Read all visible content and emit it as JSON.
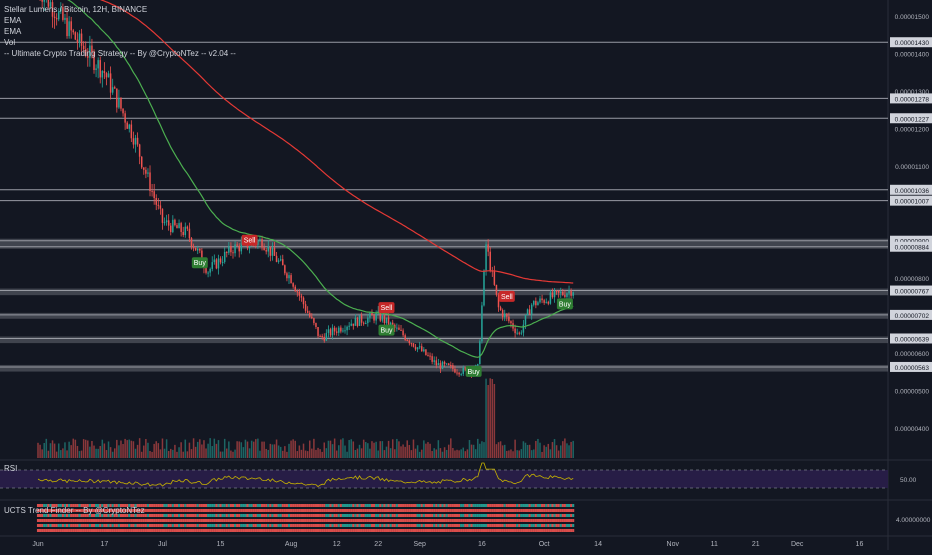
{
  "header": {
    "symbol_line": "Stellar Lumens / Bitcoin, 12H, BINANCE",
    "indicators": [
      "EMA",
      "EMA",
      "Vol",
      "-- Ultimate Crypto Trading Strategy -- By @CryptoNTez -- v2.04 --"
    ]
  },
  "rsi_label": "RSI",
  "trend_label": "UCTS Trend Finder -- By @CryptoNTez",
  "colors": {
    "background": "#131722",
    "up": "#26a69a",
    "down": "#ef5350",
    "ema_fast": "#4caf50",
    "ema_slow": "#e53935",
    "rsi_line": "#c8b400",
    "rsi_band": "#2a1e4a",
    "level_line": "#d1d4dc",
    "buy_badge": "#2e7d32",
    "sell_badge": "#c62828"
  },
  "chart_data": {
    "type": "candlestick",
    "title": "Stellar Lumens / Bitcoin, 12H, BINANCE",
    "y_axis_ticks": [
      "0.00001500",
      "0.00001430",
      "0.00001400",
      "0.00001300",
      "0.00001278",
      "0.00001227",
      "0.00001200",
      "0.00001100",
      "0.00001036",
      "0.00001007",
      "0.00000900",
      "0.00000884",
      "0.00000800",
      "0.00000767",
      "0.00000702",
      "0.00000639",
      "0.00000600",
      "0.00000563",
      "0.00000500",
      "0.00000400"
    ],
    "rsi_ticks": [
      "50.00"
    ],
    "trend_ticks": [
      "4.00000000"
    ],
    "x_axis_ticks": [
      "Jun",
      "17",
      "Jul",
      "15",
      "Aug",
      "12",
      "22",
      "Sep",
      "16",
      "Oct",
      "14",
      "Nov",
      "11",
      "21",
      "Dec",
      "16"
    ],
    "horizontal_levels": [
      1.43e-05,
      1.28e-05,
      1.227e-05,
      1.036e-05,
      1.007e-05,
      9e-06,
      8.84e-06,
      7.67e-06,
      7.02e-06,
      6.39e-06,
      5.63e-06
    ],
    "signals": [
      {
        "label": "Buy",
        "date": "Jul 10",
        "price": 8.4e-06
      },
      {
        "label": "Sell",
        "date": "Jul 22",
        "price": 9e-06
      },
      {
        "label": "Sell",
        "date": "Aug 24",
        "price": 7.2e-06
      },
      {
        "label": "Buy",
        "date": "Aug 24",
        "price": 6.6e-06
      },
      {
        "label": "Buy",
        "date": "Sep 14",
        "price": 5.5e-06
      },
      {
        "label": "Sell",
        "date": "Sep 22",
        "price": 7.5e-06
      },
      {
        "label": "Buy",
        "date": "Oct 6",
        "price": 7.3e-06
      }
    ],
    "series": [
      {
        "name": "EMA",
        "values_approx": "fast EMA falling from 0.0000145 (early Jun) to 0.0000070 (Oct)"
      },
      {
        "name": "EMA",
        "values_approx": "slow EMA falling from 0.0000160 (Jun) to 0.0000087 (Oct)"
      }
    ],
    "price_path": [
      {
        "date": "Jun 1",
        "price": 1.58e-05
      },
      {
        "date": "Jun 10",
        "price": 1.44e-05
      },
      {
        "date": "Jun 17",
        "price": 1.35e-05
      },
      {
        "date": "Jun 24",
        "price": 1.18e-05
      },
      {
        "date": "Jul 1",
        "price": 9.5e-06
      },
      {
        "date": "Jul 7",
        "price": 9.2e-06
      },
      {
        "date": "Jul 12",
        "price": 8.2e-06
      },
      {
        "date": "Jul 18",
        "price": 8.8e-06
      },
      {
        "date": "Jul 25",
        "price": 9e-06
      },
      {
        "date": "Aug 1",
        "price": 8e-06
      },
      {
        "date": "Aug 8",
        "price": 6.4e-06
      },
      {
        "date": "Aug 15",
        "price": 6.8e-06
      },
      {
        "date": "Aug 22",
        "price": 7e-06
      },
      {
        "date": "Aug 29",
        "price": 6.4e-06
      },
      {
        "date": "Sep 5",
        "price": 5.7e-06
      },
      {
        "date": "Sep 12",
        "price": 5.5e-06
      },
      {
        "date": "Sep 15",
        "price": 5.6e-06
      },
      {
        "date": "Sep 17",
        "price": 8.9e-06
      },
      {
        "date": "Sep 20",
        "price": 7.2e-06
      },
      {
        "date": "Sep 25",
        "price": 6.5e-06
      },
      {
        "date": "Sep 28",
        "price": 7.3e-06
      },
      {
        "date": "Oct 3",
        "price": 7.5e-06
      },
      {
        "date": "Oct 8",
        "price": 7.7e-06
      }
    ]
  }
}
